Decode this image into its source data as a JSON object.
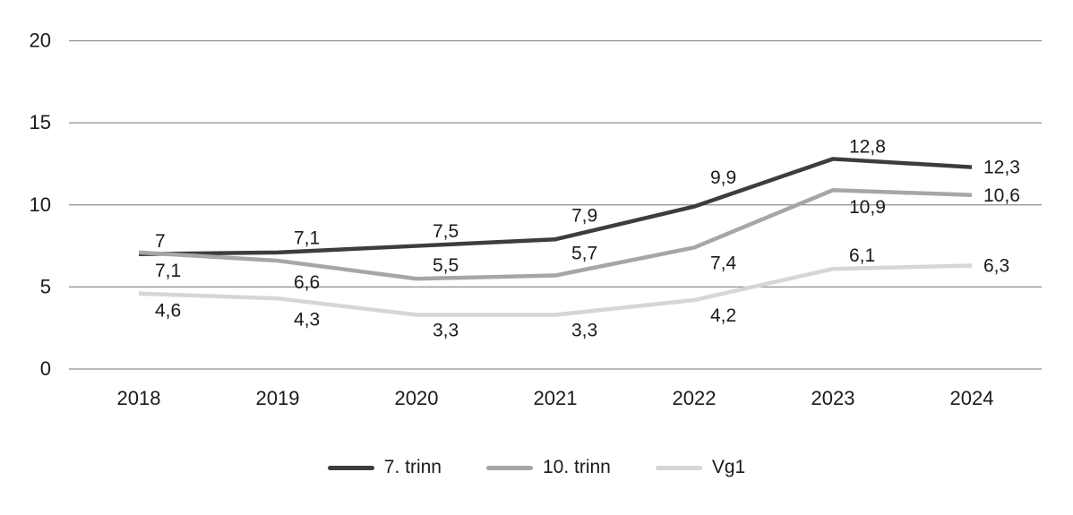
{
  "chart_data": {
    "type": "line",
    "title": "",
    "xlabel": "",
    "ylabel": "",
    "categories": [
      "2018",
      "2019",
      "2020",
      "2021",
      "2022",
      "2023",
      "2024"
    ],
    "ylim": [
      0,
      20
    ],
    "yticks": [
      0,
      5,
      10,
      15,
      20
    ],
    "ytick_labels": [
      "0",
      "5",
      "10",
      "15",
      "20"
    ],
    "grid": "horizontal",
    "grid_color": "#8f8f8f",
    "text_color": "#1a1a1a",
    "background_color": "#ffffff",
    "legend_position": "bottom-center",
    "series": [
      {
        "name": "7. trinn",
        "color": "#3d3d3d",
        "values": [
          7,
          7.1,
          7.5,
          7.9,
          9.9,
          12.8,
          12.3
        ],
        "labels": [
          "7",
          "7,1",
          "7,5",
          "7,9",
          "9,9",
          "12,8",
          "12,3"
        ],
        "label_placement": [
          "above",
          "above",
          "above",
          "above",
          "above",
          "above",
          "right"
        ]
      },
      {
        "name": "10. trinn",
        "color": "#a6a6a6",
        "values": [
          7.1,
          6.6,
          5.5,
          5.7,
          7.4,
          10.9,
          10.6
        ],
        "labels": [
          "7,1",
          "6,6",
          "5,5",
          "5,7",
          "7,4",
          "10,9",
          "10,6"
        ],
        "label_placement": [
          "below",
          "below",
          "above",
          "above",
          "below",
          "below",
          "right"
        ]
      },
      {
        "name": "Vg1",
        "color": "#d6d6d6",
        "values": [
          4.6,
          4.3,
          3.3,
          3.3,
          4.2,
          6.1,
          6.3
        ],
        "labels": [
          "4,6",
          "4,3",
          "3,3",
          "3,3",
          "4,2",
          "6,1",
          "6,3"
        ],
        "label_placement": [
          "below",
          "below",
          "below",
          "below",
          "below",
          "above",
          "right"
        ]
      }
    ]
  }
}
